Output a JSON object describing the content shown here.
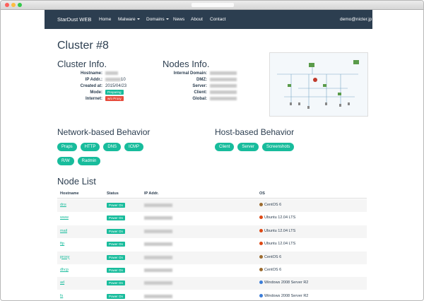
{
  "navbar": {
    "brand": "StarDust WEB",
    "links": [
      {
        "text": "Home"
      },
      {
        "text": "Malware",
        "dropdown": true
      },
      {
        "text": "Domains",
        "dropdown": true
      },
      {
        "text": "News"
      },
      {
        "text": "About"
      },
      {
        "text": "Contact"
      }
    ],
    "user": {
      "text": "demo@nicter.jp",
      "dropdown": true
    }
  },
  "page_title": "Cluster #8",
  "cluster_info": {
    "title": "Cluster Info.",
    "rows": [
      {
        "label": "Hostname:"
      },
      {
        "label": "IP Addr.:",
        "value": "10"
      },
      {
        "label": "Created at:",
        "value": "2015/04/23"
      },
      {
        "label": "Mode:",
        "badge": "Preparing",
        "badge_color": "#18bc9c"
      },
      {
        "label": "Internet:",
        "badge": "w/o Proxy",
        "badge_color": "#e74c3c"
      }
    ]
  },
  "nodes_info": {
    "title": "Nodes Info.",
    "rows": [
      {
        "label": "Internal Domain:"
      },
      {
        "label": "DMZ:"
      },
      {
        "label": "Server:"
      },
      {
        "label": "Client:"
      },
      {
        "label": "Global:"
      }
    ]
  },
  "network_behavior": {
    "title": "Network-based Behavior",
    "buttons": [
      "Praps",
      "HTTP",
      "DNS",
      "ICMP",
      "R/W",
      "Radmin"
    ]
  },
  "host_behavior": {
    "title": "Host-based Behavior",
    "buttons": [
      "Client",
      "Server",
      "Screenshots"
    ]
  },
  "node_list": {
    "title": "Node List",
    "columns": [
      "Hostname",
      "Status",
      "IP Addr.",
      "OS"
    ],
    "rows": [
      {
        "hostname": "dns",
        "status": "Power On",
        "os": "CentOS 6"
      },
      {
        "hostname": "www",
        "status": "Power On",
        "os": "Ubuntu 12.04 LTS"
      },
      {
        "hostname": "mail",
        "status": "Power On",
        "os": "Ubuntu 12.04 LTS"
      },
      {
        "hostname": "ftp",
        "status": "Power On",
        "os": "Ubuntu 12.04 LTS"
      },
      {
        "hostname": "proxy",
        "status": "Power On",
        "os": "CentOS 6"
      },
      {
        "hostname": "dhcp",
        "status": "Power On",
        "os": "CentOS 6"
      },
      {
        "hostname": "ad",
        "status": "Power On",
        "os": "Windows 2008 Server R2"
      },
      {
        "hostname": "fs",
        "status": "Power On",
        "os": "Windows 2008 Server R2"
      }
    ]
  }
}
